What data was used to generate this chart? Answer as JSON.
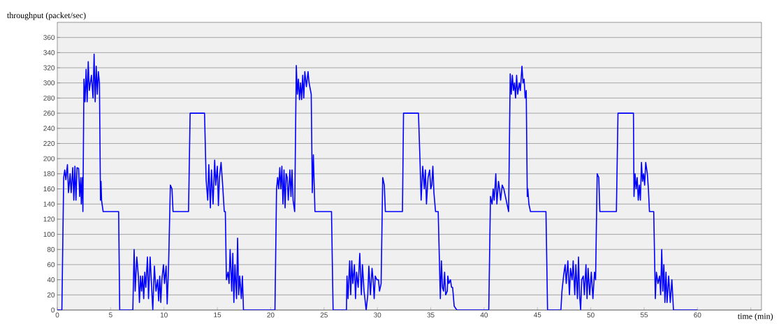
{
  "chart_data": {
    "type": "line",
    "xlabel": "time (min)",
    "ylabel": "throughput (packet/sec)",
    "xlim": [
      0,
      66
    ],
    "ylim": [
      0,
      380
    ],
    "xticks": [
      0,
      5,
      10,
      15,
      20,
      25,
      30,
      35,
      40,
      45,
      50,
      55,
      60,
      {
        "value": 65,
        "label": null
      }
    ],
    "yticks": [
      0,
      20,
      40,
      60,
      80,
      100,
      120,
      140,
      160,
      180,
      200,
      220,
      240,
      260,
      280,
      300,
      320,
      340,
      360
    ],
    "grid": "y",
    "marker": "none",
    "line_style": "solid",
    "series": [
      {
        "color": "#0000ff",
        "x": [
          0,
          0.43,
          0.6,
          0.7,
          0.8,
          0.95,
          1.05,
          1.2,
          1.3,
          1.45,
          1.55,
          1.65,
          1.75,
          1.85,
          2.0,
          2.1,
          2.2,
          2.25,
          2.35,
          2.4,
          2.5,
          2.6,
          2.7,
          2.8,
          2.9,
          3.0,
          3.2,
          3.35,
          3.45,
          3.55,
          3.65,
          3.75,
          3.85,
          3.95,
          4.05,
          4.1,
          4.15,
          4.3,
          5.75,
          5.85,
          7.08,
          7.2,
          7.3,
          7.45,
          7.6,
          7.7,
          7.8,
          7.9,
          8.0,
          8.1,
          8.2,
          8.3,
          8.45,
          8.55,
          8.7,
          8.95,
          9.1,
          9.25,
          9.4,
          9.5,
          9.6,
          9.7,
          9.8,
          9.95,
          10.05,
          10.2,
          10.3,
          10.43,
          10.6,
          10.75,
          10.85,
          12.3,
          12.45,
          13.8,
          13.95,
          14.1,
          14.2,
          14.35,
          14.45,
          14.6,
          14.75,
          14.85,
          15.0,
          15.1,
          15.2,
          15.35,
          15.5,
          15.65,
          15.75,
          15.85,
          16.0,
          16.1,
          16.2,
          16.35,
          16.45,
          16.55,
          16.65,
          16.8,
          16.9,
          17.0,
          17.1,
          17.25,
          17.35,
          17.45,
          20.4,
          20.55,
          20.65,
          20.75,
          20.85,
          20.95,
          21.05,
          21.15,
          21.25,
          21.35,
          21.45,
          21.55,
          21.65,
          21.8,
          21.9,
          22.0,
          22.1,
          22.25,
          22.4,
          22.5,
          22.6,
          22.7,
          22.8,
          22.9,
          23.0,
          23.1,
          23.2,
          23.35,
          23.5,
          23.6,
          23.8,
          23.9,
          24.0,
          24.15,
          25.7,
          25.85,
          27.1,
          27.15,
          27.25,
          27.4,
          27.5,
          27.6,
          27.7,
          27.85,
          27.95,
          28.05,
          28.2,
          28.35,
          28.5,
          28.6,
          28.75,
          28.95,
          29.1,
          29.2,
          29.35,
          29.5,
          29.6,
          29.7,
          29.8,
          29.95,
          30.1,
          30.2,
          30.35,
          30.5,
          30.65,
          30.75,
          32.35,
          32.45,
          33.85,
          34.0,
          34.1,
          34.25,
          34.4,
          34.5,
          34.6,
          34.75,
          34.9,
          35.0,
          35.1,
          35.2,
          35.3,
          35.45,
          35.7,
          35.9,
          36.0,
          36.1,
          36.2,
          36.3,
          36.4,
          36.55,
          36.6,
          36.7,
          36.85,
          36.95,
          37.05,
          37.2,
          37.45,
          40.44,
          40.6,
          40.75,
          40.85,
          40.95,
          41.1,
          41.2,
          41.35,
          41.45,
          41.55,
          41.7,
          41.85,
          42.3,
          42.45,
          42.55,
          42.65,
          42.75,
          42.85,
          42.95,
          43.05,
          43.15,
          43.3,
          43.4,
          43.55,
          43.65,
          43.75,
          43.85,
          43.95,
          44.05,
          44.1,
          44.2,
          44.35,
          45.8,
          45.95,
          47.2,
          47.3,
          47.45,
          47.6,
          47.7,
          47.85,
          48.0,
          48.1,
          48.25,
          48.35,
          48.5,
          48.6,
          48.75,
          48.85,
          48.95,
          49.05,
          49.15,
          49.3,
          49.4,
          49.55,
          49.65,
          49.75,
          49.9,
          50.05,
          50.2,
          50.35,
          50.45,
          50.6,
          50.75,
          50.85,
          52.4,
          52.55,
          54.0,
          54.05,
          54.15,
          54.25,
          54.35,
          54.45,
          54.55,
          54.65,
          54.75,
          54.85,
          54.95,
          55.05,
          55.15,
          55.3,
          55.4,
          55.5,
          55.9,
          56.05,
          56.15,
          56.3,
          56.45,
          56.55,
          56.65,
          56.75,
          56.85,
          56.95,
          57.05,
          57.15,
          57.3,
          57.45,
          57.6,
          57.75,
          60
        ],
        "values": [
          0,
          0,
          175,
          185,
          172,
          192,
          155,
          180,
          155,
          188,
          145,
          190,
          145,
          188,
          187,
          150,
          175,
          140,
          175,
          130,
          305,
          275,
          318,
          275,
          328,
          290,
          310,
          280,
          338,
          275,
          322,
          285,
          315,
          300,
          145,
          170,
          145,
          130,
          130,
          0,
          0,
          80,
          25,
          70,
          45,
          10,
          45,
          25,
          45,
          15,
          50,
          30,
          70,
          15,
          70,
          0,
          58,
          25,
          40,
          12,
          45,
          10,
          40,
          60,
          35,
          58,
          8,
          58,
          165,
          160,
          130,
          130,
          260,
          260,
          172,
          145,
          192,
          135,
          185,
          140,
          198,
          165,
          190,
          138,
          175,
          195,
          165,
          130,
          130,
          40,
          50,
          35,
          80,
          25,
          75,
          10,
          60,
          15,
          95,
          20,
          45,
          15,
          45,
          0,
          0,
          160,
          175,
          160,
          188,
          160,
          190,
          140,
          185,
          135,
          180,
          175,
          145,
          185,
          150,
          185,
          145,
          130,
          323,
          285,
          305,
          278,
          300,
          278,
          310,
          280,
          315,
          295,
          315,
          300,
          285,
          155,
          205,
          130,
          130,
          0,
          0,
          45,
          15,
          65,
          20,
          65,
          35,
          60,
          15,
          50,
          30,
          75,
          20,
          60,
          25,
          0,
          20,
          58,
          20,
          55,
          40,
          15,
          45,
          40,
          40,
          25,
          35,
          175,
          165,
          130,
          130,
          260,
          260,
          195,
          145,
          190,
          160,
          185,
          140,
          175,
          185,
          160,
          165,
          190,
          155,
          130,
          130,
          15,
          65,
          30,
          25,
          50,
          20,
          25,
          45,
          35,
          40,
          30,
          30,
          5,
          0,
          0,
          150,
          140,
          160,
          145,
          180,
          140,
          170,
          160,
          145,
          165,
          160,
          130,
          312,
          285,
          310,
          290,
          300,
          280,
          310,
          285,
          300,
          290,
          322,
          300,
          305,
          280,
          290,
          150,
          160,
          140,
          130,
          130,
          0,
          0,
          25,
          45,
          60,
          35,
          65,
          20,
          55,
          40,
          65,
          20,
          60,
          15,
          70,
          20,
          0,
          40,
          45,
          20,
          60,
          15,
          55,
          20,
          50,
          15,
          50,
          40,
          180,
          175,
          130,
          130,
          260,
          260,
          150,
          180,
          160,
          175,
          145,
          165,
          145,
          195,
          170,
          180,
          165,
          195,
          180,
          160,
          130,
          130,
          15,
          50,
          35,
          45,
          20,
          80,
          25,
          60,
          10,
          50,
          10,
          45,
          10,
          40,
          0,
          0
        ]
      }
    ]
  }
}
